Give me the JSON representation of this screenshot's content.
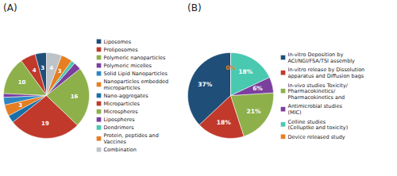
{
  "chart_data": [
    {
      "type": "pie",
      "title": "(A)",
      "categories": [
        "Liposomes",
        "Proliposomes",
        "Polymeric nanoparticles",
        "Polymeric micelles",
        "Solid Lipid Nanoparticles",
        "Nanoparticles embedded\nmicroparticles",
        "Nano-aggregates",
        "Microparticles",
        "Microspheres",
        "Lipospheres",
        "Dendrimers",
        "Protein, peptides and\nVaccines",
        "Combination"
      ],
      "values": [
        3,
        4,
        10,
        1,
        2,
        3,
        2,
        19,
        16,
        2,
        1,
        3,
        4
      ],
      "colors": [
        "#1F4E79",
        "#C0392B",
        "#8DB04A",
        "#7B3F9E",
        "#2E86C1",
        "#E67E22",
        "#1A6FA6",
        "#C0392B",
        "#8DB04A",
        "#7B3F9E",
        "#48C9B0",
        "#E67E22",
        "#BDC3C7"
      ],
      "data_labels": true,
      "value_labels": [
        "3",
        "4",
        "10",
        null,
        null,
        "3",
        null,
        "19",
        "16",
        null,
        null,
        "3",
        "4"
      ],
      "legend": "right"
    },
    {
      "type": "pie",
      "title": "(B)",
      "categories": [
        "In-vitro Deposition by\nACI/NGI/FSA/TSI assembly",
        "In-vitro release by Dissolution\napparatus and Diffusion bags",
        "In-vivo studies Toxicity/\nPharmacokinetics/\nPharmacokinetics and",
        "Antimicrobial studies\n(MIC)",
        "Celline studies\n(Celluptke and toxicity)",
        "Device released study"
      ],
      "values": [
        37,
        18,
        21,
        6,
        18,
        0
      ],
      "colors": [
        "#1F4E79",
        "#C0392B",
        "#8DB04A",
        "#7B3F9E",
        "#48C9B0",
        "#E67E22"
      ],
      "data_labels": true,
      "value_labels": [
        "37%",
        "18%",
        "21%",
        "6%",
        "18%",
        "0%"
      ],
      "legend": "right"
    }
  ]
}
